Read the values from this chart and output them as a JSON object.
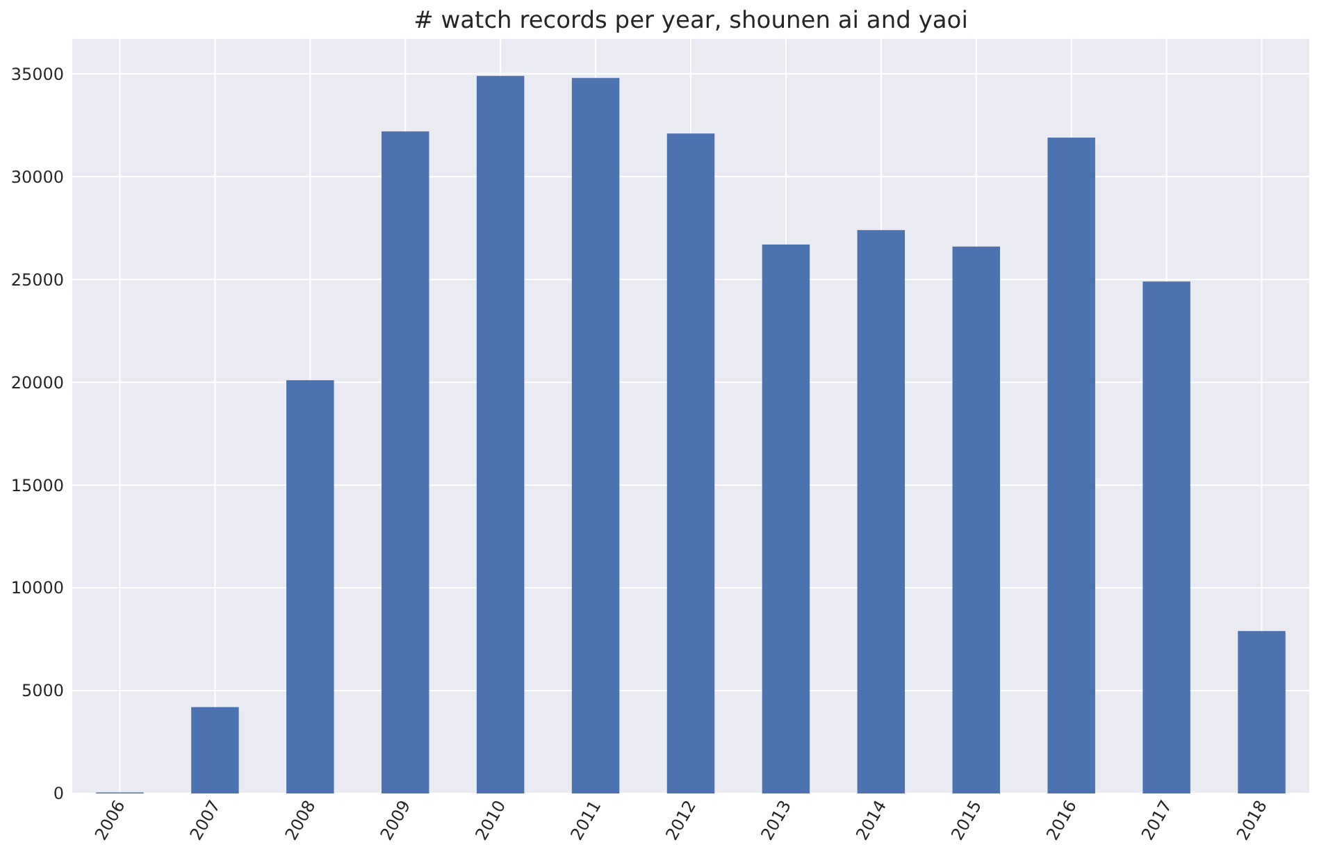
{
  "chart_data": {
    "type": "bar",
    "title": "# watch records per year, shounen ai and yaoi",
    "categories": [
      "2006",
      "2007",
      "2008",
      "2009",
      "2010",
      "2011",
      "2012",
      "2013",
      "2014",
      "2015",
      "2016",
      "2017",
      "2018"
    ],
    "values": [
      50,
      4200,
      20100,
      32200,
      34900,
      34800,
      32100,
      26700,
      27400,
      26600,
      31900,
      24900,
      7900
    ],
    "color": "#4c72b0",
    "ylim": [
      0,
      36700
    ],
    "yticks": [
      0,
      5000,
      10000,
      15000,
      20000,
      25000,
      30000,
      35000
    ],
    "grid": true
  }
}
